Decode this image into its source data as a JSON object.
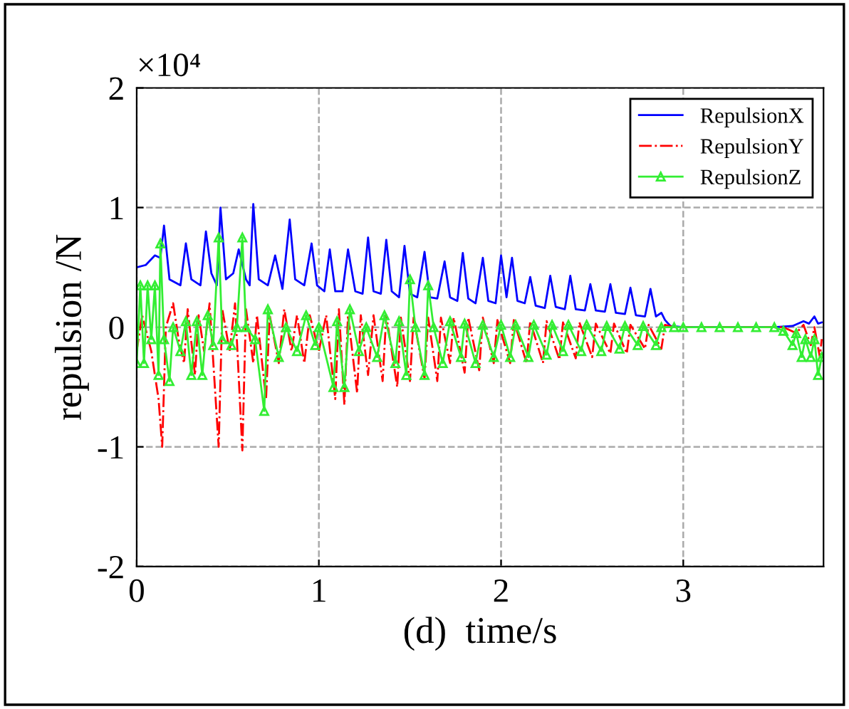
{
  "chart_data": {
    "type": "line",
    "xlabel": "(d)  time/s",
    "ylabel": "repulsion /N",
    "annotations": [
      "×10⁴"
    ],
    "xlim": [
      0,
      3.77
    ],
    "xticks": [
      0,
      1,
      2,
      3
    ],
    "ylim": [
      -2,
      2
    ],
    "yticks": [
      -2,
      -1,
      0,
      1,
      2
    ],
    "grid": true,
    "legend": "top right",
    "series": [
      {
        "name": "RepulsionX",
        "color": "#0000ff",
        "line_style": "solid",
        "marker": "none",
        "x": [
          0,
          0.05,
          0.1,
          0.13,
          0.15,
          0.18,
          0.24,
          0.27,
          0.3,
          0.35,
          0.38,
          0.41,
          0.44,
          0.46,
          0.49,
          0.53,
          0.56,
          0.6,
          0.62,
          0.64,
          0.67,
          0.72,
          0.76,
          0.8,
          0.84,
          0.87,
          0.92,
          0.96,
          0.99,
          1.03,
          1.06,
          1.09,
          1.13,
          1.16,
          1.2,
          1.24,
          1.27,
          1.3,
          1.34,
          1.37,
          1.4,
          1.44,
          1.47,
          1.5,
          1.54,
          1.58,
          1.61,
          1.65,
          1.69,
          1.72,
          1.76,
          1.79,
          1.82,
          1.86,
          1.9,
          1.93,
          1.97,
          2.0,
          2.03,
          2.06,
          2.09,
          2.13,
          2.16,
          2.19,
          2.24,
          2.27,
          2.3,
          2.35,
          2.38,
          2.41,
          2.46,
          2.49,
          2.52,
          2.57,
          2.6,
          2.63,
          2.68,
          2.71,
          2.74,
          2.79,
          2.82,
          2.85,
          2.88,
          2.9,
          2.93,
          3.0,
          3.5,
          3.6,
          3.66,
          3.69,
          3.72,
          3.74,
          3.76
        ],
        "values": [
          0.5,
          0.52,
          0.6,
          0.58,
          0.85,
          0.4,
          0.35,
          0.7,
          0.4,
          0.35,
          0.8,
          0.45,
          0.35,
          1.0,
          0.4,
          0.45,
          0.65,
          0.4,
          0.35,
          1.03,
          0.4,
          0.35,
          0.6,
          0.32,
          0.9,
          0.4,
          0.35,
          0.7,
          0.35,
          0.3,
          0.65,
          0.3,
          0.3,
          0.65,
          0.3,
          0.28,
          0.75,
          0.3,
          0.28,
          0.73,
          0.3,
          0.25,
          0.68,
          0.28,
          0.25,
          0.63,
          0.25,
          0.24,
          0.55,
          0.25,
          0.22,
          0.62,
          0.24,
          0.2,
          0.58,
          0.22,
          0.2,
          0.6,
          0.25,
          0.58,
          0.22,
          0.2,
          0.42,
          0.18,
          0.16,
          0.43,
          0.17,
          0.15,
          0.43,
          0.15,
          0.14,
          0.36,
          0.14,
          0.13,
          0.36,
          0.12,
          0.11,
          0.33,
          0.1,
          0.09,
          0.32,
          0.09,
          0.12,
          0.06,
          0.01,
          0,
          0,
          0.01,
          0.05,
          0.03,
          0.09,
          0.03,
          0.04
        ]
      },
      {
        "name": "RepulsionY",
        "color": "#ff0000",
        "line_style": "dashdot",
        "marker": "none",
        "x": [
          0,
          0.03,
          0.08,
          0.12,
          0.14,
          0.16,
          0.2,
          0.23,
          0.26,
          0.28,
          0.32,
          0.34,
          0.37,
          0.4,
          0.45,
          0.47,
          0.51,
          0.54,
          0.58,
          0.6,
          0.64,
          0.66,
          0.71,
          0.73,
          0.78,
          0.81,
          0.85,
          0.88,
          0.92,
          0.95,
          1.0,
          1.04,
          1.09,
          1.11,
          1.14,
          1.16,
          1.21,
          1.23,
          1.27,
          1.3,
          1.35,
          1.37,
          1.43,
          1.45,
          1.5,
          1.52,
          1.58,
          1.6,
          1.65,
          1.67,
          1.72,
          1.74,
          1.8,
          1.82,
          1.88,
          1.9,
          1.96,
          1.98,
          2.05,
          2.07,
          2.14,
          2.16,
          2.23,
          2.25,
          2.32,
          2.34,
          2.41,
          2.43,
          2.5,
          2.52,
          2.6,
          2.62,
          2.69,
          2.71,
          2.79,
          2.81,
          2.88,
          2.9,
          2.95,
          3.55,
          3.62,
          3.66,
          3.7,
          3.72,
          3.75,
          3.76
        ],
        "values": [
          -0.2,
          0.1,
          -0.2,
          -0.6,
          -1.0,
          0,
          0.2,
          -0.1,
          -0.3,
          0.15,
          -0.4,
          0.1,
          -0.2,
          0.2,
          -1.0,
          0.15,
          -0.2,
          0.2,
          -1.03,
          0.15,
          -0.3,
          0.1,
          -0.6,
          0.1,
          -0.3,
          0.15,
          -0.2,
          0.1,
          -0.3,
          0.1,
          -0.2,
          0.1,
          -0.6,
          0.15,
          -0.65,
          0.1,
          -0.55,
          0.1,
          -0.4,
          0.1,
          -0.45,
          0.1,
          -0.5,
          0.08,
          -0.45,
          0.08,
          -0.43,
          0.08,
          -0.45,
          0.08,
          -0.3,
          0.08,
          -0.38,
          0.08,
          -0.36,
          0.08,
          -0.3,
          0.06,
          -0.3,
          0.06,
          -0.3,
          0.05,
          -0.3,
          0.05,
          -0.27,
          0.04,
          -0.26,
          0.04,
          -0.25,
          0.03,
          -0.22,
          0.03,
          -0.22,
          0.02,
          -0.18,
          0.02,
          -0.18,
          0.02,
          0,
          0,
          -0.05,
          0.02,
          -0.15,
          0,
          -0.25,
          -0.1
        ]
      },
      {
        "name": "RepulsionZ",
        "color": "#33ee33",
        "line_style": "solid",
        "marker": "triangle",
        "x": [
          0,
          0.02,
          0.04,
          0.06,
          0.08,
          0.1,
          0.12,
          0.13,
          0.15,
          0.18,
          0.2,
          0.24,
          0.27,
          0.3,
          0.33,
          0.36,
          0.39,
          0.42,
          0.45,
          0.47,
          0.52,
          0.55,
          0.58,
          0.6,
          0.65,
          0.7,
          0.72,
          0.78,
          0.82,
          0.88,
          0.93,
          0.98,
          1.0,
          1.08,
          1.1,
          1.14,
          1.17,
          1.22,
          1.26,
          1.32,
          1.36,
          1.42,
          1.44,
          1.48,
          1.5,
          1.53,
          1.58,
          1.6,
          1.63,
          1.68,
          1.72,
          1.78,
          1.8,
          1.86,
          1.9,
          1.96,
          2.0,
          2.05,
          2.08,
          2.15,
          2.18,
          2.25,
          2.28,
          2.34,
          2.37,
          2.44,
          2.47,
          2.55,
          2.58,
          2.65,
          2.68,
          2.75,
          2.78,
          2.85,
          2.88,
          2.95,
          3.0,
          3.1,
          3.2,
          3.3,
          3.4,
          3.5,
          3.55,
          3.6,
          3.62,
          3.65,
          3.67,
          3.7,
          3.72,
          3.74,
          3.76
        ],
        "values": [
          -0.3,
          0.35,
          -0.3,
          0.35,
          -0.1,
          0.35,
          -0.4,
          0.7,
          -0.1,
          -0.45,
          0,
          -0.2,
          0.05,
          -0.4,
          0.05,
          -0.4,
          0.1,
          -0.15,
          0.75,
          -0.1,
          -0.15,
          0,
          0.75,
          0,
          -0.1,
          -0.7,
          0.15,
          -0.25,
          0,
          -0.2,
          0.1,
          -0.15,
          0,
          -0.5,
          0.05,
          -0.5,
          0.15,
          -0.2,
          0,
          -0.25,
          0.1,
          -0.3,
          0.05,
          -0.4,
          0.4,
          0,
          -0.4,
          0.35,
          0,
          -0.3,
          0.05,
          -0.25,
          0.03,
          -0.3,
          0.02,
          -0.25,
          0.02,
          -0.25,
          0.02,
          -0.25,
          0.02,
          -0.23,
          0.02,
          -0.2,
          0.02,
          -0.2,
          0.02,
          -0.2,
          0.01,
          -0.18,
          0.01,
          -0.15,
          0.01,
          -0.15,
          0,
          0,
          0,
          0,
          0,
          0,
          0,
          0,
          -0.03,
          -0.15,
          -0.05,
          -0.25,
          -0.1,
          -0.25,
          -0.1,
          -0.4,
          -0.25
        ]
      }
    ]
  }
}
